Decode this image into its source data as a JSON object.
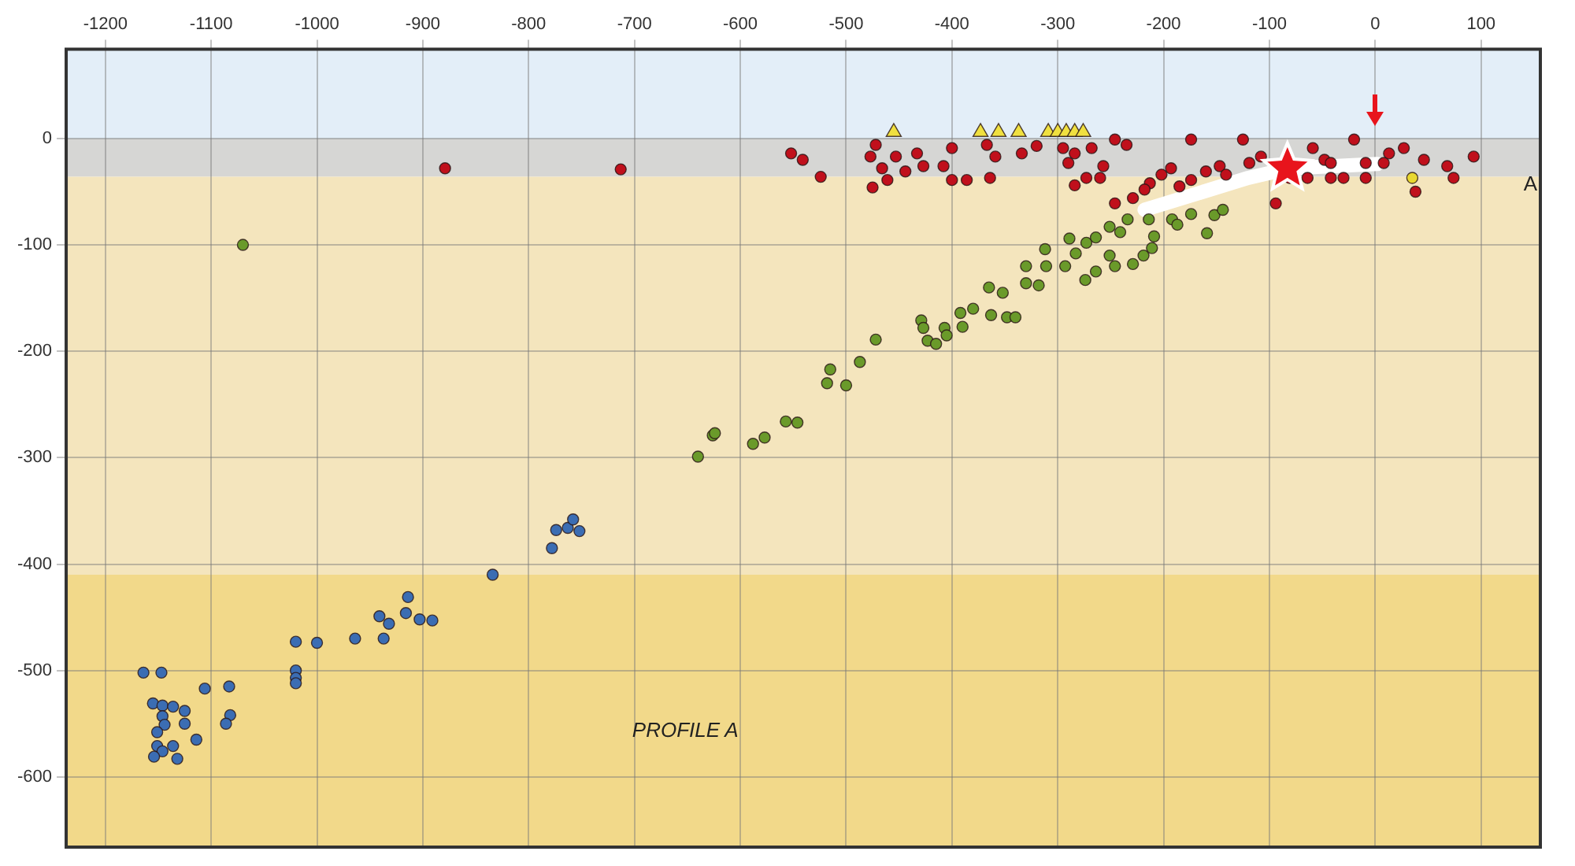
{
  "chart_data": {
    "type": "scatter",
    "xlim": [
      -1237,
      156
    ],
    "xticks": [
      -1200,
      -1100,
      -1000,
      -900,
      -800,
      -700,
      -600,
      -500,
      -400,
      -300,
      -200,
      -100,
      0,
      100
    ],
    "ylim": [
      -666,
      84
    ],
    "yticks": [
      -600,
      -500,
      -400,
      -300,
      -200,
      -100,
      0
    ],
    "grid": true,
    "legend": false,
    "annotations": [
      "PROFILE A",
      "A"
    ],
    "bands": [
      {
        "axis": "y",
        "from": 0,
        "to": 84,
        "color": "#e3eef8"
      },
      {
        "axis": "y",
        "from": -36,
        "to": 0,
        "color": "#d6d6d4"
      },
      {
        "axis": "y",
        "from": -410,
        "to": -36,
        "color": "#f4e5bd"
      },
      {
        "axis": "y",
        "from": -666,
        "to": -410,
        "color": "#f2d98a"
      }
    ],
    "series": [
      {
        "marker": "circle",
        "color": "#3b6db3",
        "x": [
          -1164,
          -1147,
          -1155,
          -1146,
          -1136,
          -1125,
          -1125,
          -1146,
          -1144,
          -1151,
          -1151,
          -1146,
          -1154,
          -1136,
          -1132,
          -1114,
          -1106,
          -1083,
          -1082,
          -1086,
          -1020,
          -1020,
          -1020,
          -1020,
          -1000,
          -964,
          -941,
          -932,
          -937,
          -914,
          -916,
          -903,
          -891,
          -834,
          -778,
          -774,
          -763,
          -758,
          -752
        ],
        "values": [
          -502,
          -502,
          -531,
          -533,
          -534,
          -538,
          -550,
          -543,
          -551,
          -558,
          -571,
          -576,
          -581,
          -571,
          -583,
          -565,
          -517,
          -515,
          -542,
          -550,
          -473,
          -500,
          -507,
          -512,
          -474,
          -470,
          -449,
          -456,
          -470,
          -431,
          -446,
          -452,
          -453,
          -410,
          -385,
          -368,
          -366,
          -358,
          -369
        ]
      },
      {
        "marker": "circle",
        "color": "#6a9a2a",
        "x": [
          -1070,
          -640,
          -626,
          -624,
          -588,
          -577,
          -557,
          -546,
          -518,
          -515,
          -500,
          -487,
          -472,
          -429,
          -427,
          -423,
          -415,
          -407,
          -405,
          -392,
          -390,
          -380,
          -365,
          -352,
          -363,
          -348,
          -340,
          -330,
          -318,
          -330,
          -311,
          -312,
          -293,
          -289,
          -283,
          -274,
          -264,
          -273,
          -264,
          -251,
          -246,
          -251,
          -241,
          -229,
          -219,
          -211,
          -209,
          -234,
          -214,
          -192,
          -187,
          -174,
          -159,
          -152,
          -144
        ],
        "values": [
          -100,
          -299,
          -279,
          -277,
          -287,
          -281,
          -266,
          -267,
          -230,
          -217,
          -232,
          -210,
          -189,
          -171,
          -178,
          -190,
          -193,
          -178,
          -185,
          -164,
          -177,
          -160,
          -140,
          -145,
          -166,
          -168,
          -168,
          -120,
          -138,
          -136,
          -120,
          -104,
          -120,
          -94,
          -108,
          -133,
          -125,
          -98,
          -93,
          -110,
          -120,
          -83,
          -88,
          -118,
          -110,
          -103,
          -92,
          -76,
          -76,
          -76,
          -81,
          -71,
          -89,
          -72,
          -67
        ]
      },
      {
        "marker": "circle",
        "color": "#c0101c",
        "x": [
          -879,
          -713,
          -552,
          -541,
          -524,
          -472,
          -477,
          -453,
          -466,
          -444,
          -461,
          -475,
          -433,
          -427,
          -400,
          -408,
          -400,
          -386,
          -367,
          -359,
          -364,
          -334,
          -320,
          -295,
          -284,
          -290,
          -268,
          -257,
          -246,
          -235,
          -284,
          -273,
          -260,
          -174,
          -246,
          -229,
          -213,
          -193,
          -174,
          -160,
          -147,
          -125,
          -119,
          -94,
          -81,
          -59,
          -48,
          -42,
          -20,
          -9,
          13,
          27,
          46,
          68,
          74,
          38,
          93,
          -30,
          8,
          -218,
          -202,
          -185,
          -141,
          -108,
          -64,
          -42,
          -9
        ],
        "values": [
          -28,
          -29,
          -14,
          -20,
          -36,
          -6,
          -17,
          -17,
          -28,
          -31,
          -39,
          -46,
          -14,
          -26,
          -9,
          -26,
          -39,
          -39,
          -6,
          -17,
          -37,
          -14,
          -7,
          -9,
          -14,
          -23,
          -9,
          -26,
          -1,
          -6,
          -44,
          -37,
          -37,
          -1,
          -61,
          -56,
          -42,
          -28,
          -39,
          -31,
          -26,
          -1,
          -23,
          -61,
          -37,
          -9,
          -20,
          -37,
          -1,
          -37,
          -14,
          -9,
          -20,
          -26,
          -37,
          -50,
          -17,
          -37,
          -23,
          -48,
          -34,
          -45,
          -34,
          -17,
          -37,
          -23,
          -23
        ]
      },
      {
        "marker": "triangle",
        "color": "#f0e040",
        "x": [
          -455,
          -373,
          -356,
          -337,
          -309,
          -300,
          -292,
          -284,
          -276
        ],
        "values": [
          6,
          6,
          6,
          6,
          6,
          6,
          6,
          6,
          6
        ]
      },
      {
        "marker": "circle",
        "color": "#e8d830",
        "x": [
          35
        ],
        "values": [
          -37
        ]
      },
      {
        "type": "line",
        "marker": "none",
        "line_style": "solid",
        "color": "#ffffff",
        "x": [
          -218,
          -120,
          -81,
          2
        ],
        "values": [
          -67,
          -37,
          -28,
          -24
        ]
      },
      {
        "marker": "star",
        "color": "#e8141c",
        "x": [
          -83
        ],
        "values": [
          -28
        ]
      }
    ]
  }
}
